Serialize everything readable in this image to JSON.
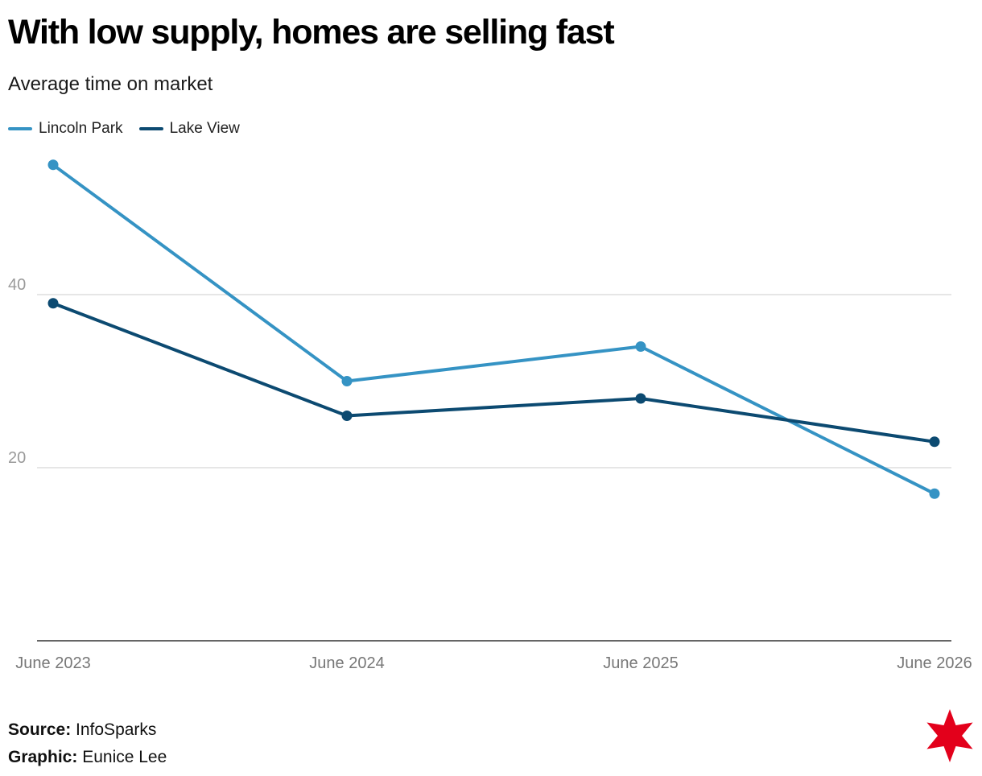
{
  "title": "With low supply, homes are selling fast",
  "subtitle": "Average time on market",
  "footer": {
    "source_label": "Source:",
    "source_value": "InfoSparks",
    "graphic_label": "Graphic:",
    "graphic_value": "Eunice Lee"
  },
  "logo_icon": "six-pointed-red-star-icon",
  "chart_data": {
    "type": "line",
    "categories": [
      "June 2023",
      "June 2024",
      "June 2025",
      "June 2026"
    ],
    "ylim": [
      0,
      56
    ],
    "yticks": [
      20,
      40
    ],
    "grid": true,
    "legend_position": "top-left",
    "xlabel": "",
    "ylabel": "",
    "series": [
      {
        "name": "Lincoln Park",
        "color": "#3593c4",
        "values": [
          55,
          30,
          34,
          17
        ]
      },
      {
        "name": "Lake View",
        "color": "#0c4a71",
        "values": [
          39,
          26,
          28,
          23
        ]
      }
    ]
  }
}
